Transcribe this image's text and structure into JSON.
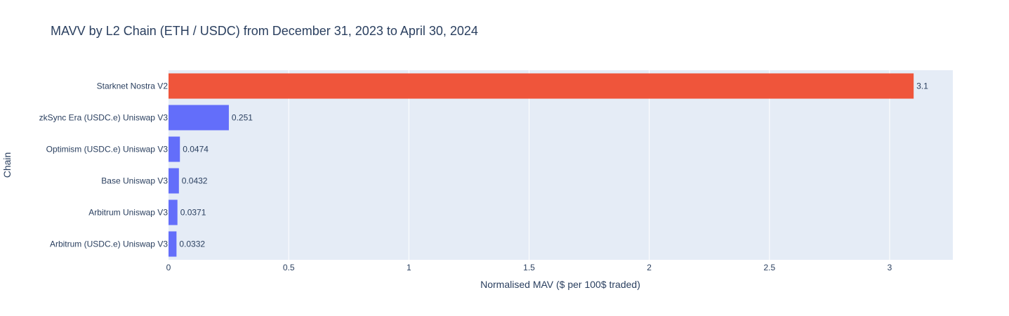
{
  "chart_data": {
    "type": "bar",
    "orientation": "horizontal",
    "title": "MAVV by L2 Chain (ETH / USDC) from December 31, 2023 to April 30, 2024",
    "xlabel": "Normalised MAV ($ per 100$ traded)",
    "ylabel": "Chain",
    "xlim": [
      0,
      3.263
    ],
    "xticks": [
      {
        "value": 0,
        "label": "0"
      },
      {
        "value": 0.5,
        "label": "0.5"
      },
      {
        "value": 1,
        "label": "1"
      },
      {
        "value": 1.5,
        "label": "1.5"
      },
      {
        "value": 2,
        "label": "2"
      },
      {
        "value": 2.5,
        "label": "2.5"
      },
      {
        "value": 3,
        "label": "3"
      }
    ],
    "grid": true,
    "categories": [
      "Starknet Nostra V2",
      "zkSync Era (USDC.e) Uniswap V3",
      "Optimism (USDC.e) Uniswap V3",
      "Base Uniswap V3",
      "Arbitrum Uniswap V3",
      "Arbitrum (USDC.e) Uniswap V3"
    ],
    "values": [
      3.1,
      0.251,
      0.0474,
      0.0432,
      0.0371,
      0.0332
    ],
    "value_labels": [
      "3.1",
      "0.251",
      "0.0474",
      "0.0432",
      "0.0371",
      "0.0332"
    ],
    "colors": [
      "#EF553B",
      "#636EFA",
      "#636EFA",
      "#636EFA",
      "#636EFA",
      "#636EFA"
    ],
    "plot_background": "#E5ECF6",
    "grid_color": "#ffffff",
    "text_color": "#2a3f5f"
  }
}
